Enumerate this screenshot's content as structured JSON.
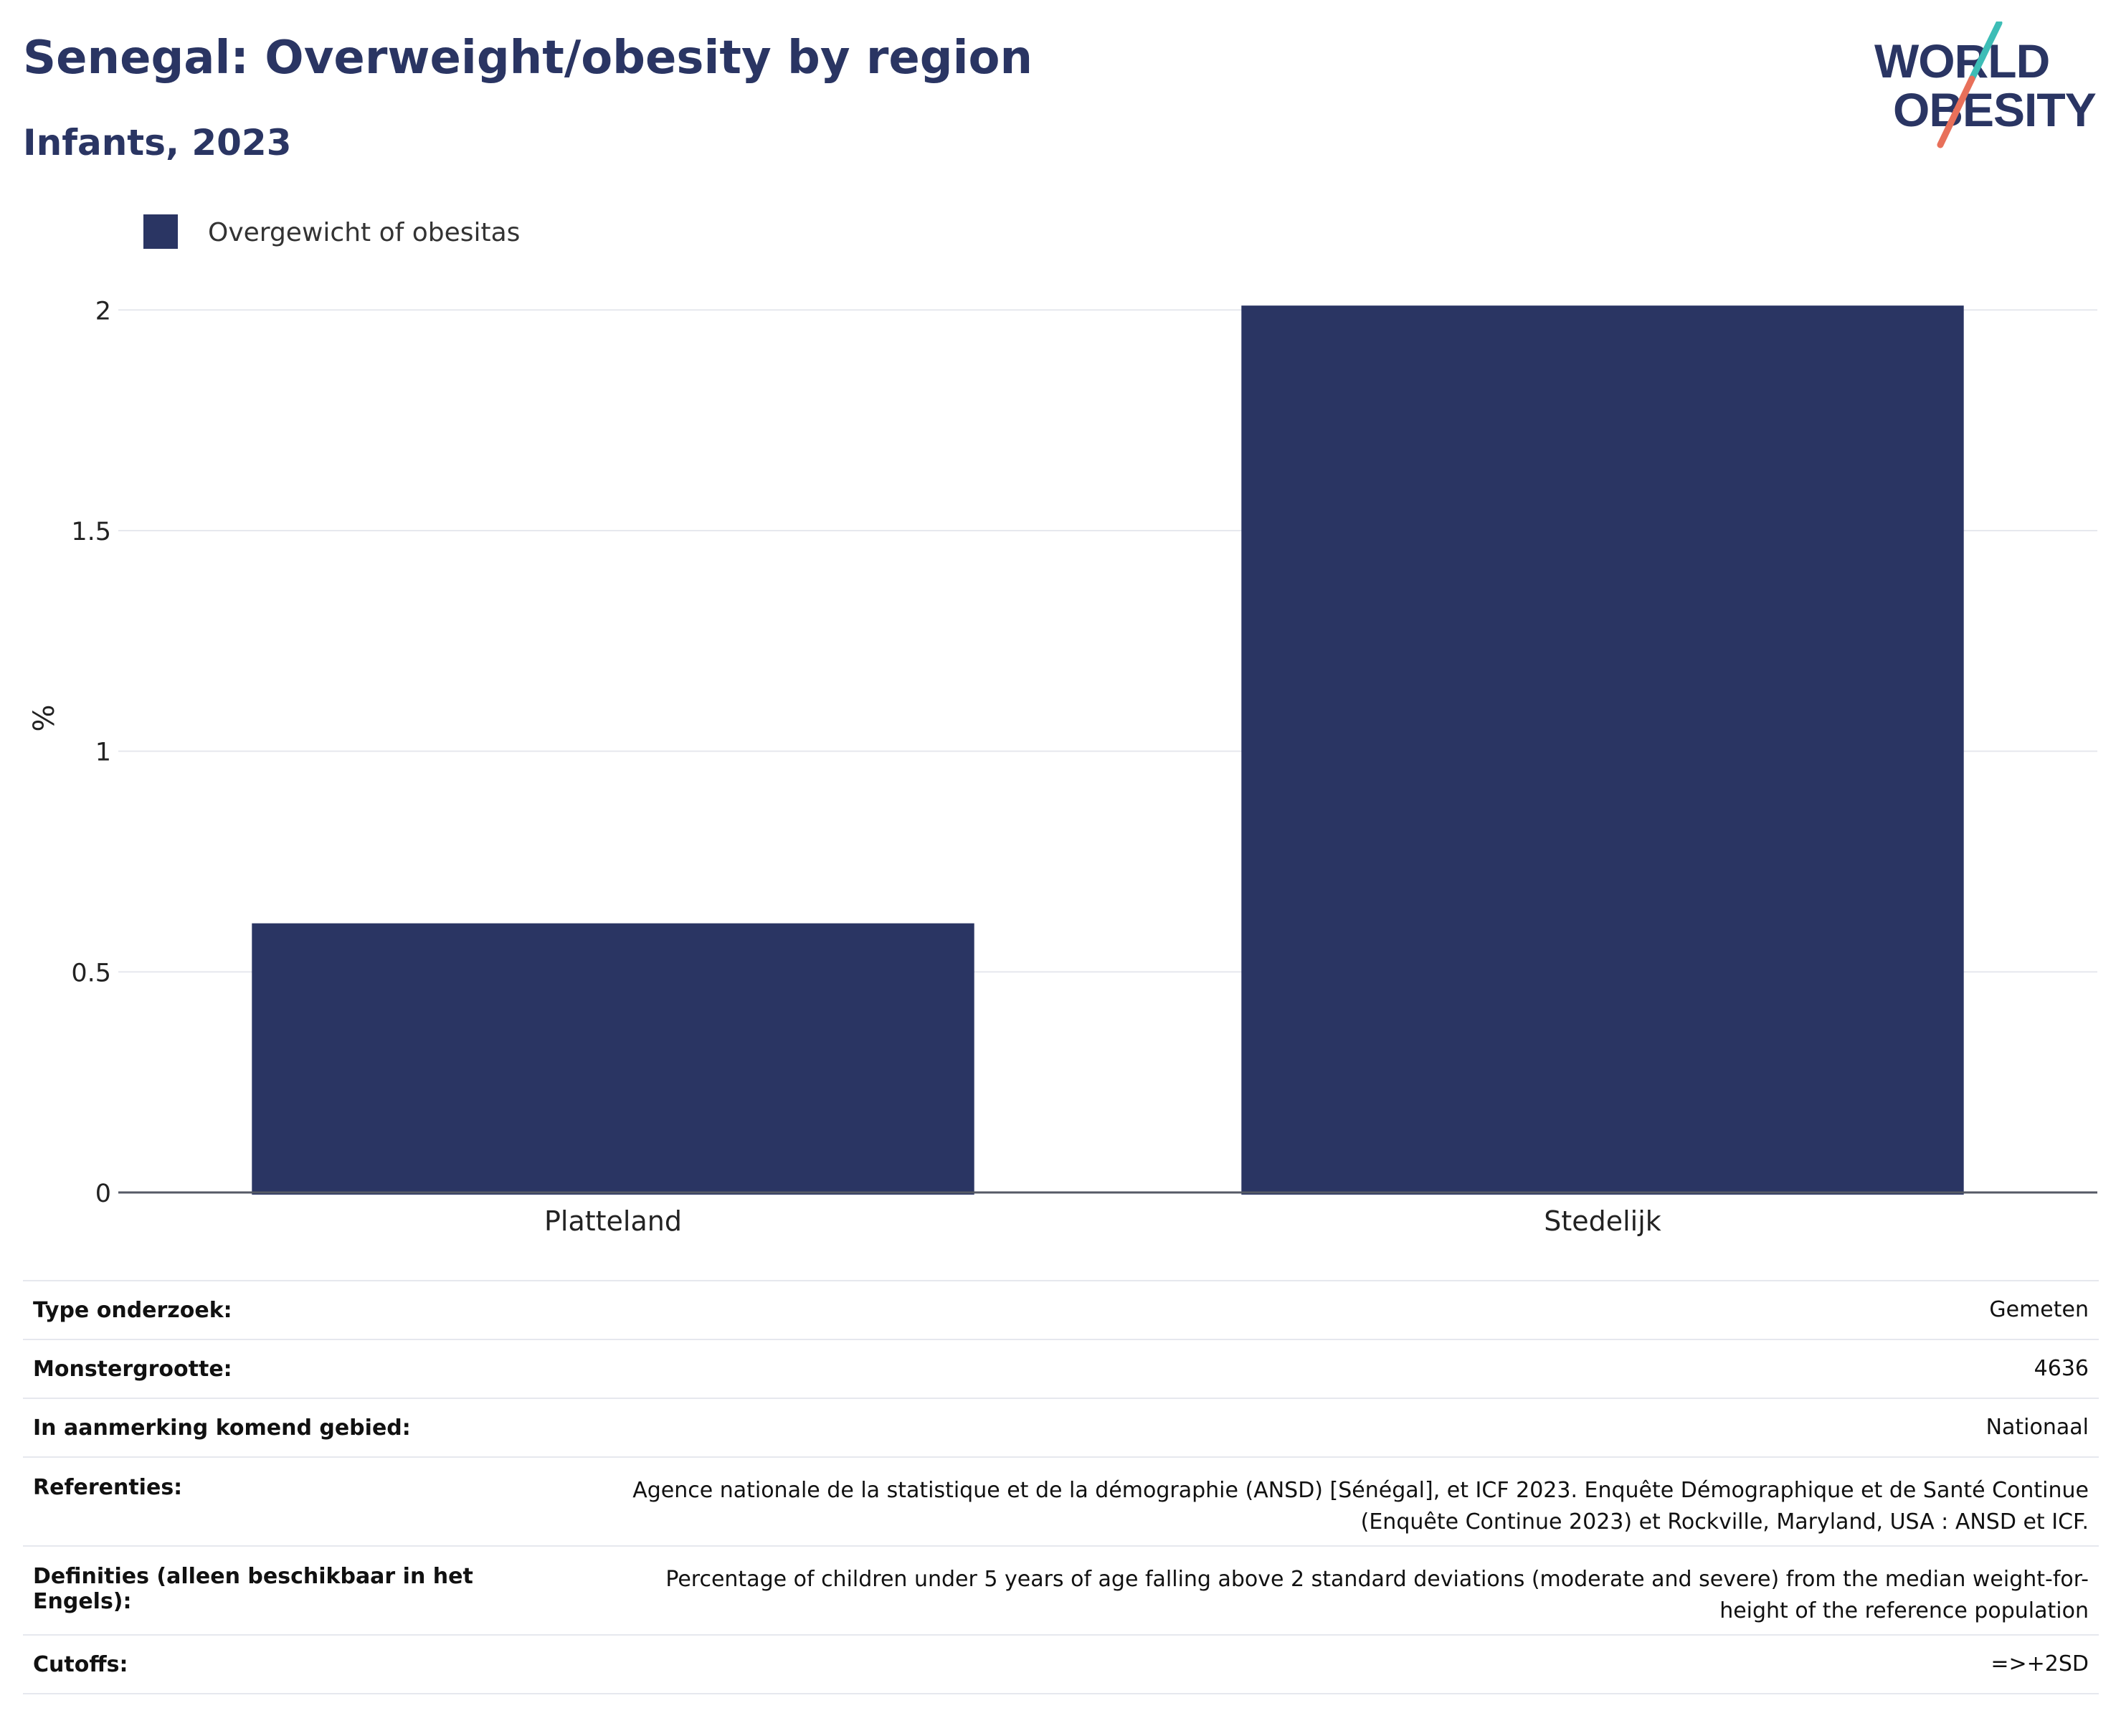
{
  "title": "Senegal: Overweight/obesity by region",
  "subtitle": "Infants, 2023",
  "logo": {
    "line1": "WORLD",
    "line2": "OBESITY",
    "colors": {
      "navy": "#2a3563",
      "teal": "#3dbdb6",
      "coral": "#e8705a"
    }
  },
  "chart_data": {
    "type": "bar",
    "categories": [
      "Platteland",
      "Stedelijk"
    ],
    "series": [
      {
        "name": "Overgewicht of obesitas",
        "values": [
          0.61,
          2.01
        ],
        "color": "#2a3563"
      }
    ],
    "ylabel": "%",
    "xlabel": "",
    "ylim": [
      0,
      2.15
    ],
    "yticks": [
      0,
      0.5,
      1,
      1.5,
      2
    ],
    "ytick_labels": [
      "0",
      "0.5",
      "1",
      "1.5",
      "2"
    ],
    "grid": true,
    "legend_position": "top-left"
  },
  "meta": [
    {
      "label": "Type onderzoek:",
      "value": "Gemeten"
    },
    {
      "label": "Monstergrootte:",
      "value": "4636"
    },
    {
      "label": "In aanmerking komend gebied:",
      "value": "Nationaal"
    },
    {
      "label": "Referenties:",
      "value": "Agence nationale de la statistique et de la démographie (ANSD) [Sénégal], et ICF 2023. Enquête Démographique et de Santé Continue (Enquête Continue 2023) et Rockville, Maryland, USA : ANSD et ICF."
    },
    {
      "label": "Definities (alleen beschikbaar in het Engels):",
      "value": "Percentage of children under 5 years of age falling above 2 standard deviations (moderate and severe) from the median weight-for-height of the reference population"
    },
    {
      "label": "Cutoffs:",
      "value": "=>+2SD"
    }
  ]
}
